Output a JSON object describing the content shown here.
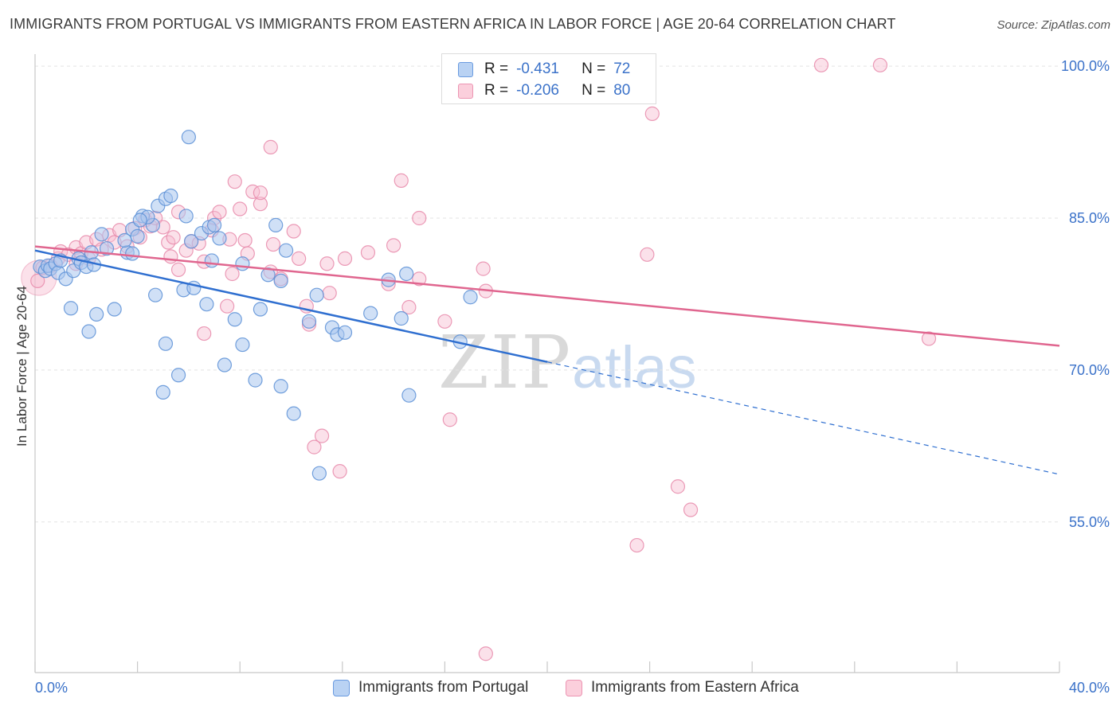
{
  "title": "IMMIGRANTS FROM PORTUGAL VS IMMIGRANTS FROM EASTERN AFRICA IN LABOR FORCE | AGE 20-64 CORRELATION CHART",
  "source": "Source: ZipAtlas.com",
  "watermark": {
    "zip": "ZIP",
    "atlas": "atlas"
  },
  "legend_stats": [
    {
      "r_label": "R =",
      "r_value": "-0.431",
      "n_label": "N =",
      "n_value": "72"
    },
    {
      "r_label": "R =",
      "r_value": "-0.206",
      "n_label": "N =",
      "n_value": "80"
    }
  ],
  "colors": {
    "blue_fill": "#a9c6ee",
    "blue_stroke": "#5b8fd6",
    "blue_line": "#2f6fd0",
    "pink_fill": "#f7bdd0",
    "pink_stroke": "#e88aaa",
    "pink_line": "#e0668f",
    "axis_text": "#3b72c9",
    "grid": "#e3e3e3"
  },
  "chart_data": {
    "type": "scatter",
    "title": "IMMIGRANTS FROM PORTUGAL VS IMMIGRANTS FROM EASTERN AFRICA IN LABOR FORCE | AGE 20-64 CORRELATION CHART",
    "xlabel": "",
    "ylabel": "In Labor Force | Age 20-64",
    "xlim": [
      0,
      40
    ],
    "ylim": [
      40,
      101
    ],
    "x_tick_labels": [
      "0.0%",
      "40.0%"
    ],
    "y_ticks": [
      55,
      70,
      85,
      100
    ],
    "y_tick_labels": [
      "55.0%",
      "70.0%",
      "85.0%",
      "100.0%"
    ],
    "grid": true,
    "legend_position": "bottom",
    "series": [
      {
        "name": "Immigrants from Portugal",
        "color": "#a9c6ee",
        "trend": {
          "x": [
            0,
            20
          ],
          "y": [
            81.8,
            70.8
          ],
          "dashed_to": [
            40,
            59.7
          ]
        },
        "points": [
          [
            0.2,
            80.2
          ],
          [
            0.4,
            79.8
          ],
          [
            0.5,
            80.3
          ],
          [
            0.6,
            80.0
          ],
          [
            0.8,
            80.5
          ],
          [
            0.9,
            79.6
          ],
          [
            1.0,
            80.8
          ],
          [
            1.2,
            79.0
          ],
          [
            1.5,
            79.8
          ],
          [
            1.7,
            81.0
          ],
          [
            1.8,
            80.6
          ],
          [
            2.0,
            80.2
          ],
          [
            2.2,
            81.6
          ],
          [
            2.3,
            80.4
          ],
          [
            1.4,
            76.1
          ],
          [
            2.1,
            73.8
          ],
          [
            2.4,
            75.5
          ],
          [
            3.1,
            76.0
          ],
          [
            3.6,
            81.6
          ],
          [
            3.5,
            82.8
          ],
          [
            3.8,
            81.5
          ],
          [
            3.8,
            83.9
          ],
          [
            4.0,
            83.2
          ],
          [
            4.2,
            85.2
          ],
          [
            4.6,
            84.3
          ],
          [
            4.4,
            85.1
          ],
          [
            4.8,
            86.2
          ],
          [
            5.1,
            86.9
          ],
          [
            5.3,
            87.2
          ],
          [
            4.1,
            84.8
          ],
          [
            2.8,
            82.0
          ],
          [
            2.6,
            83.4
          ],
          [
            5.9,
            85.2
          ],
          [
            6.1,
            82.7
          ],
          [
            6.0,
            93.0
          ],
          [
            5.8,
            77.9
          ],
          [
            4.7,
            77.4
          ],
          [
            5.1,
            72.6
          ],
          [
            5.6,
            69.5
          ],
          [
            5.0,
            67.8
          ],
          [
            6.5,
            83.5
          ],
          [
            6.8,
            84.1
          ],
          [
            7.0,
            84.3
          ],
          [
            7.2,
            83.0
          ],
          [
            6.9,
            80.8
          ],
          [
            6.2,
            78.1
          ],
          [
            6.7,
            76.5
          ],
          [
            7.4,
            70.5
          ],
          [
            8.1,
            80.5
          ],
          [
            7.8,
            75.0
          ],
          [
            8.1,
            72.5
          ],
          [
            8.6,
            69.0
          ],
          [
            8.8,
            76.0
          ],
          [
            9.4,
            84.3
          ],
          [
            9.1,
            79.4
          ],
          [
            9.8,
            81.8
          ],
          [
            9.6,
            78.8
          ],
          [
            9.6,
            68.4
          ],
          [
            10.1,
            65.7
          ],
          [
            10.7,
            74.8
          ],
          [
            11.0,
            77.4
          ],
          [
            11.6,
            74.2
          ],
          [
            11.8,
            73.5
          ],
          [
            12.1,
            73.7
          ],
          [
            11.1,
            59.8
          ],
          [
            13.1,
            75.6
          ],
          [
            13.8,
            78.9
          ],
          [
            14.3,
            75.1
          ],
          [
            14.5,
            79.5
          ],
          [
            14.6,
            67.5
          ],
          [
            16.6,
            72.8
          ],
          [
            17.0,
            77.2
          ]
        ]
      },
      {
        "name": "Immigrants from Eastern Africa",
        "color": "#f7bdd0",
        "trend": {
          "x": [
            0,
            40
          ],
          "y": [
            82.2,
            72.4
          ]
        },
        "points": [
          [
            0.1,
            78.8
          ],
          [
            0.3,
            80.1
          ],
          [
            0.6,
            80.3
          ],
          [
            0.9,
            81.0
          ],
          [
            1.0,
            81.7
          ],
          [
            1.3,
            81.4
          ],
          [
            1.6,
            82.1
          ],
          [
            1.8,
            81.5
          ],
          [
            2.0,
            82.6
          ],
          [
            2.1,
            81.0
          ],
          [
            2.4,
            82.9
          ],
          [
            2.6,
            81.9
          ],
          [
            2.9,
            83.3
          ],
          [
            3.1,
            82.6
          ],
          [
            3.3,
            83.8
          ],
          [
            3.6,
            82.2
          ],
          [
            3.9,
            84.0
          ],
          [
            4.1,
            83.1
          ],
          [
            4.3,
            84.8
          ],
          [
            4.5,
            84.2
          ],
          [
            4.7,
            85.0
          ],
          [
            5.0,
            84.1
          ],
          [
            5.2,
            82.6
          ],
          [
            5.4,
            83.1
          ],
          [
            5.6,
            85.6
          ],
          [
            5.9,
            81.8
          ],
          [
            6.1,
            82.7
          ],
          [
            6.4,
            82.5
          ],
          [
            6.6,
            80.7
          ],
          [
            6.9,
            83.8
          ],
          [
            7.0,
            85.0
          ],
          [
            7.2,
            85.6
          ],
          [
            7.6,
            82.9
          ],
          [
            5.6,
            79.9
          ],
          [
            5.3,
            81.2
          ],
          [
            6.6,
            73.6
          ],
          [
            7.5,
            76.3
          ],
          [
            7.7,
            79.5
          ],
          [
            8.0,
            85.9
          ],
          [
            7.8,
            88.6
          ],
          [
            8.2,
            82.8
          ],
          [
            8.3,
            81.5
          ],
          [
            8.5,
            87.6
          ],
          [
            8.8,
            86.4
          ],
          [
            8.8,
            87.5
          ],
          [
            9.2,
            79.7
          ],
          [
            9.3,
            82.4
          ],
          [
            9.6,
            79.0
          ],
          [
            10.1,
            83.7
          ],
          [
            10.3,
            81.0
          ],
          [
            9.2,
            92.0
          ],
          [
            10.6,
            76.3
          ],
          [
            10.7,
            74.5
          ],
          [
            10.9,
            62.4
          ],
          [
            11.2,
            63.5
          ],
          [
            11.4,
            80.5
          ],
          [
            11.5,
            77.6
          ],
          [
            11.9,
            60.0
          ],
          [
            13.0,
            81.6
          ],
          [
            13.8,
            78.5
          ],
          [
            14.3,
            88.7
          ],
          [
            14.6,
            76.2
          ],
          [
            15.0,
            85.0
          ],
          [
            15.0,
            79.0
          ],
          [
            16.0,
            74.8
          ],
          [
            16.2,
            65.1
          ],
          [
            17.5,
            80.0
          ],
          [
            17.6,
            42.0
          ],
          [
            17.6,
            77.8
          ],
          [
            23.5,
            52.7
          ],
          [
            23.9,
            81.4
          ],
          [
            24.1,
            95.3
          ],
          [
            25.1,
            58.5
          ],
          [
            25.6,
            56.2
          ],
          [
            30.7,
            100.1
          ],
          [
            33.0,
            100.1
          ],
          [
            34.9,
            73.1
          ],
          [
            1.6,
            80.5
          ],
          [
            12.1,
            81.0
          ],
          [
            14.0,
            82.3
          ]
        ]
      }
    ]
  }
}
